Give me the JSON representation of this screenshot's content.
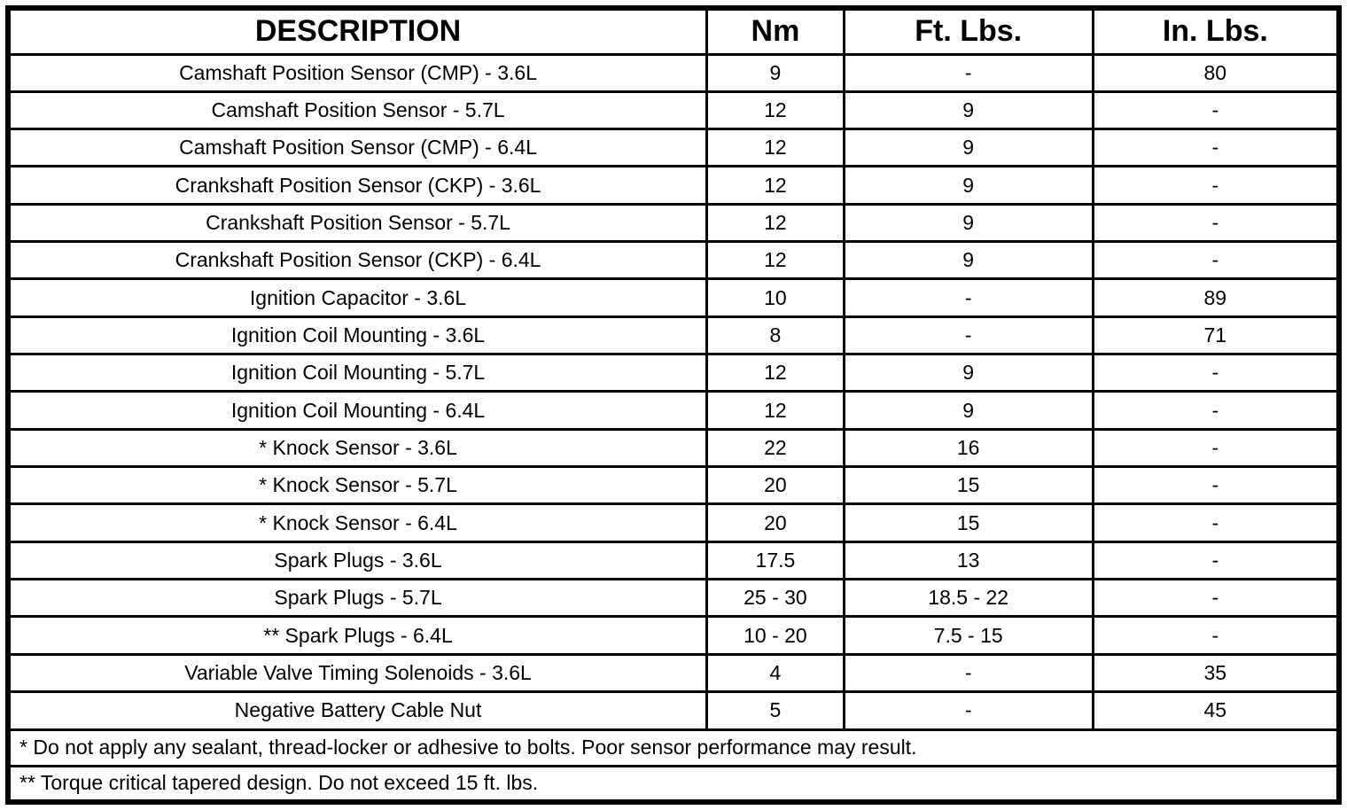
{
  "table": {
    "headers": [
      "DESCRIPTION",
      "Nm",
      "Ft. Lbs.",
      "In. Lbs."
    ],
    "rows": [
      {
        "description": "Camshaft Position Sensor (CMP) - 3.6L",
        "nm": "9",
        "ft_lbs": "-",
        "in_lbs": "80"
      },
      {
        "description": "Camshaft Position Sensor - 5.7L",
        "nm": "12",
        "ft_lbs": "9",
        "in_lbs": "-"
      },
      {
        "description": "Camshaft Position Sensor (CMP) - 6.4L",
        "nm": "12",
        "ft_lbs": "9",
        "in_lbs": "-"
      },
      {
        "description": "Crankshaft Position Sensor (CKP) - 3.6L",
        "nm": "12",
        "ft_lbs": "9",
        "in_lbs": "-"
      },
      {
        "description": "Crankshaft Position Sensor - 5.7L",
        "nm": "12",
        "ft_lbs": "9",
        "in_lbs": "-"
      },
      {
        "description": "Crankshaft Position Sensor (CKP) - 6.4L",
        "nm": "12",
        "ft_lbs": "9",
        "in_lbs": "-"
      },
      {
        "description": "Ignition Capacitor - 3.6L",
        "nm": "10",
        "ft_lbs": "-",
        "in_lbs": "89"
      },
      {
        "description": "Ignition Coil Mounting - 3.6L",
        "nm": "8",
        "ft_lbs": "-",
        "in_lbs": "71"
      },
      {
        "description": "Ignition Coil Mounting - 5.7L",
        "nm": "12",
        "ft_lbs": "9",
        "in_lbs": "-"
      },
      {
        "description": "Ignition Coil Mounting - 6.4L",
        "nm": "12",
        "ft_lbs": "9",
        "in_lbs": "-"
      },
      {
        "description": "* Knock Sensor - 3.6L",
        "nm": "22",
        "ft_lbs": "16",
        "in_lbs": "-"
      },
      {
        "description": "* Knock Sensor - 5.7L",
        "nm": "20",
        "ft_lbs": "15",
        "in_lbs": "-"
      },
      {
        "description": "* Knock Sensor - 6.4L",
        "nm": "20",
        "ft_lbs": "15",
        "in_lbs": "-"
      },
      {
        "description": "Spark Plugs - 3.6L",
        "nm": "17.5",
        "ft_lbs": "13",
        "in_lbs": "-"
      },
      {
        "description": "Spark Plugs - 5.7L",
        "nm": "25 - 30",
        "ft_lbs": "18.5 - 22",
        "in_lbs": "-"
      },
      {
        "description": "** Spark Plugs - 6.4L",
        "nm": "10 - 20",
        "ft_lbs": "7.5 - 15",
        "in_lbs": "-"
      },
      {
        "description": "Variable Valve Timing Solenoids - 3.6L",
        "nm": "4",
        "ft_lbs": "-",
        "in_lbs": "35"
      },
      {
        "description": "Negative Battery Cable Nut",
        "nm": "5",
        "ft_lbs": "-",
        "in_lbs": "45"
      }
    ],
    "footnotes": [
      "* Do not apply any sealant, thread-locker or adhesive to bolts. Poor sensor performance may result.",
      "** Torque critical tapered design. Do not exceed 15 ft. lbs."
    ]
  },
  "colors": {
    "border": "#000000",
    "background": "#ffffff",
    "text": "#000000"
  }
}
